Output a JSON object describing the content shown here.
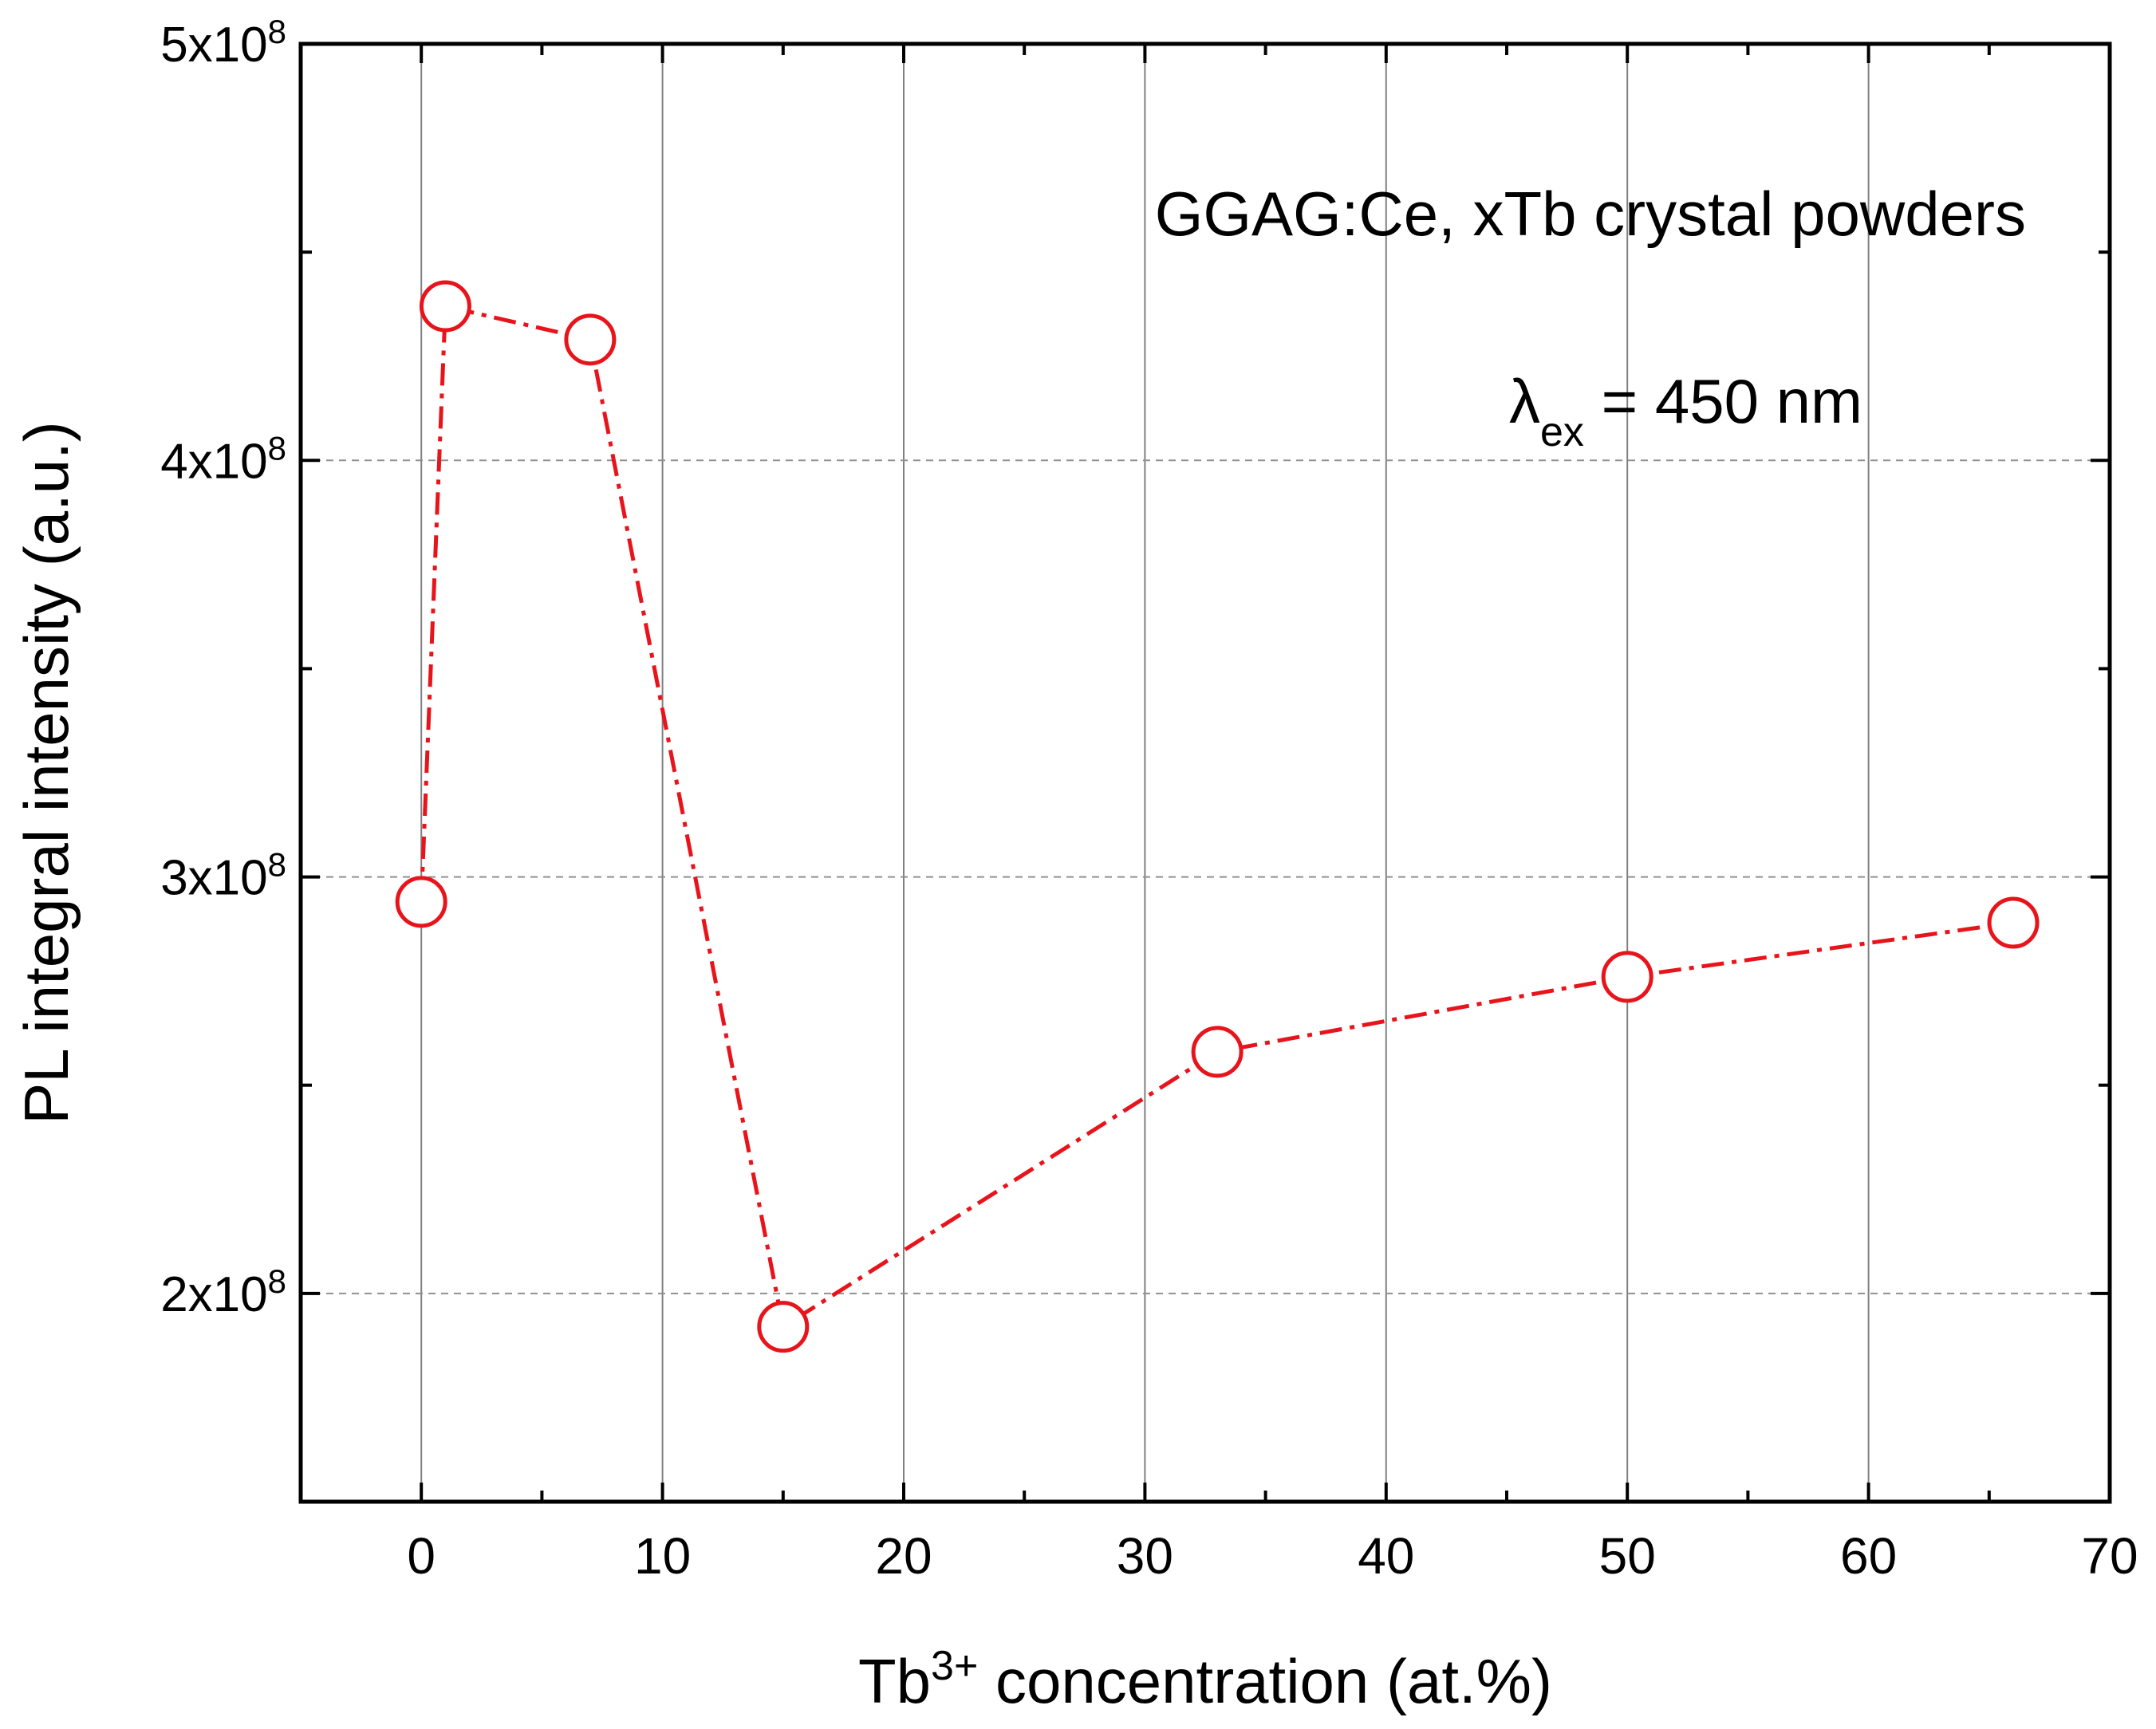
{
  "chart_data": {
    "type": "line",
    "title": "",
    "xlabel": {
      "base": "Tb",
      "sup": "3+",
      "rest": " concentration (at.%)"
    },
    "ylabel": "PL integral intensity (a.u.)",
    "xlim": [
      -5,
      70
    ],
    "ylim": [
      150000000,
      500000000
    ],
    "x_ticks": [
      0,
      10,
      20,
      30,
      40,
      50,
      60,
      70
    ],
    "x_tick_labels": [
      "0",
      "10",
      "20",
      "30",
      "40",
      "50",
      "60",
      "70"
    ],
    "x_minor_ticks": [
      5,
      15,
      25,
      35,
      45,
      55,
      65
    ],
    "y_ticks": [
      200000000,
      300000000,
      400000000,
      500000000
    ],
    "y_tick_labels": [
      {
        "mantissa": "2x10",
        "exp": "8"
      },
      {
        "mantissa": "3x10",
        "exp": "8"
      },
      {
        "mantissa": "4x10",
        "exp": "8"
      },
      {
        "mantissa": "5x10",
        "exp": "8"
      }
    ],
    "y_minor_ticks": [
      250000000,
      350000000,
      450000000
    ],
    "grid": {
      "x": "solid",
      "y": "dashed"
    },
    "series": [
      {
        "name": "GGAG:Ce, xTb crystal powders",
        "color": "#e8141b",
        "line_style": "dash-dot",
        "marker": "open-circle",
        "x": [
          0,
          1,
          7,
          15,
          33,
          50,
          66
        ],
        "y": [
          294000000,
          437000000,
          429000000,
          192000000,
          258000000,
          276000000,
          289000000
        ]
      }
    ],
    "annotations": {
      "sample": "GGAG:Ce, xTb crystal powders",
      "excitation": {
        "symbol": "λ",
        "sub": "ex",
        "rest": " = 450 nm"
      }
    }
  }
}
